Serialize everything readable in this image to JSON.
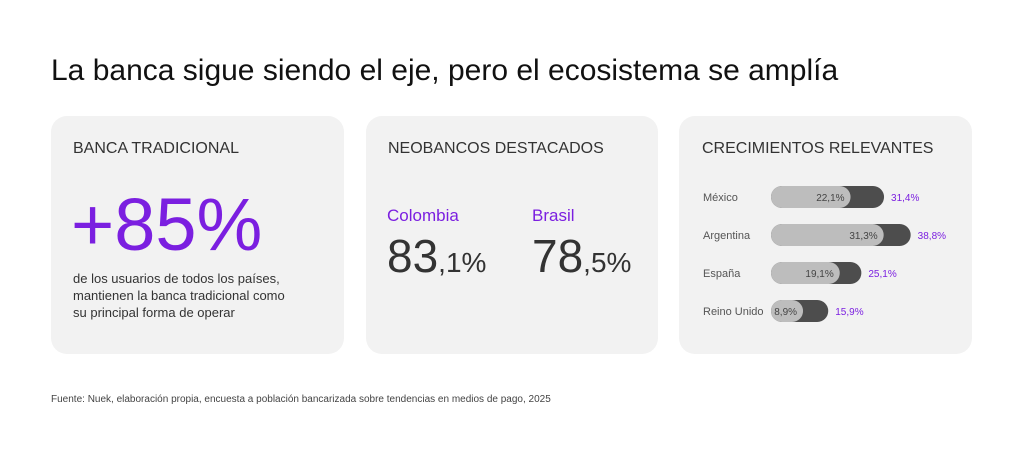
{
  "title": "La banca sigue siendo el eje, pero el ecosistema se amplía",
  "cards": [
    {
      "heading": "BANCA TRADICIONAL",
      "figure": "+85%",
      "description": [
        "de los usuarios de todos los países,",
        "mantienen la banca tradicional como",
        "su principal forma de operar"
      ]
    },
    {
      "heading": "NEOBANCOS DESTACADOS",
      "items": [
        {
          "country": "Colombia",
          "value": "83",
          "decimals": ",1%"
        },
        {
          "country": "Brasil",
          "value": "78",
          "decimals": ",5%"
        }
      ]
    }
  ],
  "chart_data": {
    "type": "bar",
    "title": "CRECIMIENTOS RELEVANTES",
    "categories": [
      "México",
      "Argentina",
      "España",
      "Reino Unido"
    ],
    "series": [
      {
        "color": "#bdbdbd",
        "values": [
          22.1,
          31.3,
          19.1,
          8.9
        ],
        "value_labels": [
          "22,1%",
          "31,3%",
          "19,1%",
          "8,9%"
        ]
      },
      {
        "color": "#4d4d4d",
        "values": [
          31.4,
          38.8,
          25.1,
          15.9
        ],
        "value_labels": [
          "31,4%",
          "38,8%",
          "25,1%",
          "15,9%"
        ]
      }
    ]
  },
  "source": "Fuente: Nuek, elaboración propia, encuesta a población bancarizada sobre tendencias en medios de pago, 2025"
}
